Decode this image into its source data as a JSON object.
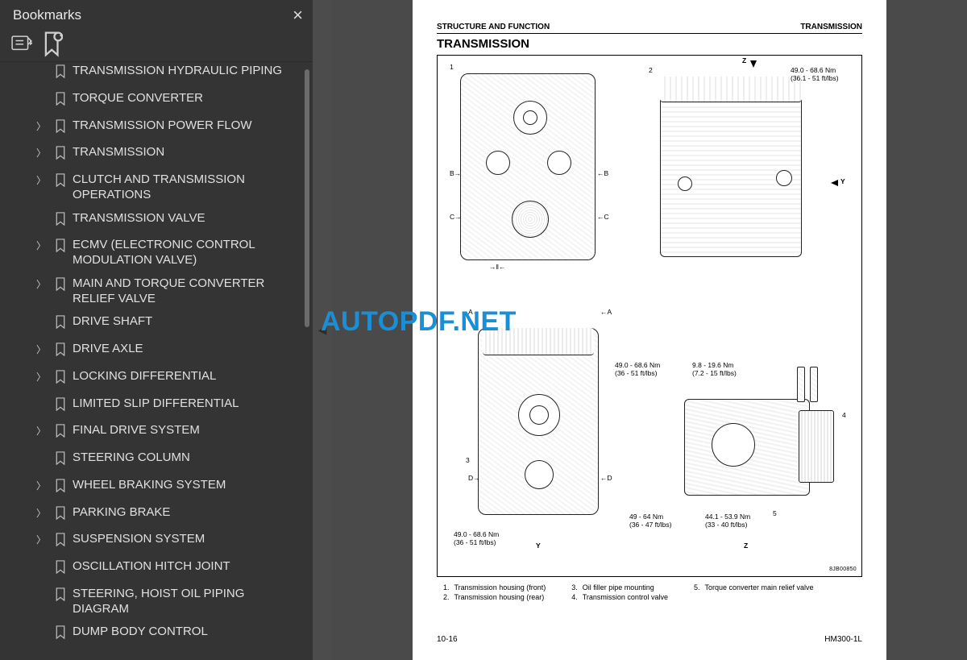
{
  "sidebar": {
    "title": "Bookmarks",
    "items": [
      {
        "label": "TRANSMISSION HYDRAULIC PIPING",
        "expandable": false,
        "indent": 1
      },
      {
        "label": "TORQUE CONVERTER",
        "expandable": false,
        "indent": 1
      },
      {
        "label": "TRANSMISSION POWER FLOW",
        "expandable": true,
        "indent": 1
      },
      {
        "label": "TRANSMISSION",
        "expandable": true,
        "indent": 1
      },
      {
        "label": "CLUTCH AND TRANSMISSION OPERATIONS",
        "expandable": true,
        "indent": 1
      },
      {
        "label": "TRANSMISSION VALVE",
        "expandable": false,
        "indent": 1
      },
      {
        "label": "ECMV (ELECTRONIC CONTROL MODULATION VALVE)",
        "expandable": true,
        "indent": 1
      },
      {
        "label": "MAIN AND TORQUE CONVERTER RELIEF VALVE",
        "expandable": true,
        "indent": 1
      },
      {
        "label": "DRIVE SHAFT",
        "expandable": false,
        "indent": 1
      },
      {
        "label": "DRIVE AXLE",
        "expandable": true,
        "indent": 1
      },
      {
        "label": "LOCKING DIFFERENTIAL",
        "expandable": true,
        "indent": 1
      },
      {
        "label": "LIMITED SLIP DIFFERENTIAL",
        "expandable": false,
        "indent": 1
      },
      {
        "label": "FINAL DRIVE SYSTEM",
        "expandable": true,
        "indent": 1
      },
      {
        "label": "STEERING COLUMN",
        "expandable": false,
        "indent": 1
      },
      {
        "label": "WHEEL BRAKING SYSTEM",
        "expandable": true,
        "indent": 1
      },
      {
        "label": "PARKING BRAKE",
        "expandable": true,
        "indent": 1
      },
      {
        "label": "SUSPENSION SYSTEM",
        "expandable": true,
        "indent": 1
      },
      {
        "label": "OSCILLATION HITCH JOINT",
        "expandable": false,
        "indent": 1
      },
      {
        "label": "STEERING, HOIST OIL PIPING DIAGRAM",
        "expandable": false,
        "indent": 1
      },
      {
        "label": "DUMP BODY CONTROL",
        "expandable": false,
        "indent": 1
      }
    ]
  },
  "page": {
    "header_left": "STRUCTURE AND FUNCTION",
    "header_right": "TRANSMISSION",
    "title": "TRANSMISSION",
    "torques": {
      "t1": "49.0 - 68.6 Nm\n(36.1 - 51 ft/lbs)",
      "t2": "49.0 - 68.6 Nm\n(36 - 51 ft/lbs)",
      "t3": "9.8 - 19.6 Nm\n(7.2 - 15 ft/lbs)",
      "t4": "49.0 - 68.6 Nm\n(36 - 51 ft/lbs)",
      "t5": "49 - 64 Nm\n(36 - 47 ft/lbs)",
      "t6": "44.1 - 53.9 Nm\n(33 - 40 ft/lbs)"
    },
    "markers": {
      "z": "Z",
      "y": "Y",
      "a": "A",
      "b": "B",
      "c": "C",
      "d": "D",
      "one": "1",
      "two": "2",
      "three": "3",
      "four": "4",
      "five": "5"
    },
    "drawing_code": "8JB00850",
    "legend": [
      {
        "n": "1.",
        "t": "Transmission housing (front)"
      },
      {
        "n": "2.",
        "t": "Transmission housing (rear)"
      },
      {
        "n": "3.",
        "t": "Oil filler pipe mounting"
      },
      {
        "n": "4.",
        "t": "Transmission control valve"
      },
      {
        "n": "5.",
        "t": "Torque converter main relief valve"
      }
    ],
    "footer_left": "10-16",
    "footer_right": "HM300-1L"
  },
  "watermark": "AUTOPDF.NET",
  "colors": {
    "sidebar_bg": "#343434",
    "viewer_bg": "#4a4a4a",
    "page_bg": "#ffffff",
    "text": "#e0e0e0",
    "watermark": "#1b8fd6"
  }
}
